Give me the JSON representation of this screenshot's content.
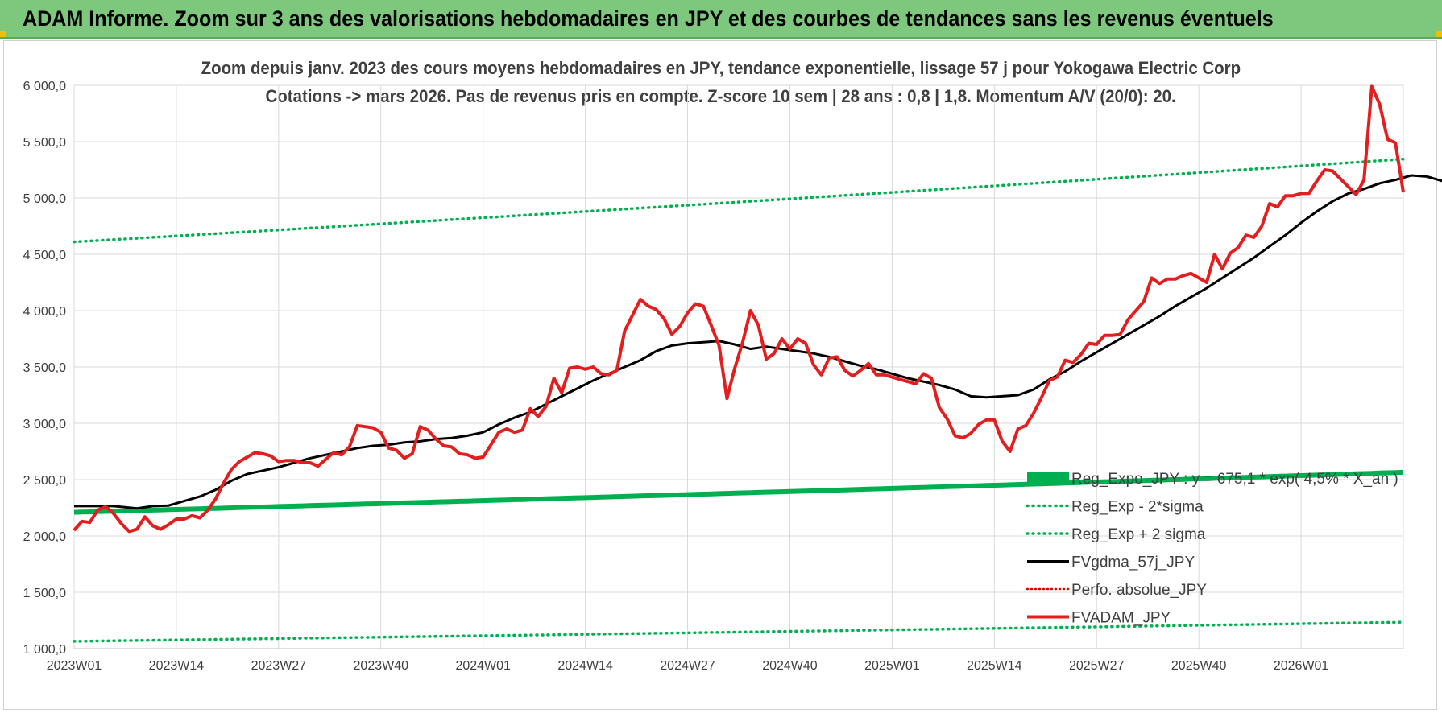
{
  "banner": {
    "title": "ADAM Informe. Zoom sur 3 ans des valorisations hebdomadaires en JPY et des courbes de tendances sans les revenus éventuels",
    "color": "#7dc87d"
  },
  "chart_data": {
    "type": "line",
    "title_line1": "Zoom depuis janv. 2023 des cours moyens hebdomadaires en JPY, tendance exponentielle, lissage 57 j pour Yokogawa Electric Corp",
    "title_line2": "Cotations -> mars 2026. Pas de revenus pris en compte. Z-score 10 sem | 28 ans : 0,8 | 1,8. Momentum A/V (20/0): 20.",
    "ylim": [
      1000,
      6000
    ],
    "y_ticks": [
      "1 000,0",
      "1 500,0",
      "2 000,0",
      "2 500,0",
      "3 000,0",
      "3 500,0",
      "4 000,0",
      "4 500,0",
      "5 000,0",
      "5 500,0",
      "6 000,0"
    ],
    "y_tick_values": [
      1000,
      1500,
      2000,
      2500,
      3000,
      3500,
      4000,
      4500,
      5000,
      5500,
      6000
    ],
    "x_ticks": [
      "2023W01",
      "2023W14",
      "2023W27",
      "2023W40",
      "2024W01",
      "2024W14",
      "2024W27",
      "2024W40",
      "2025W01",
      "2025W14",
      "2025W27",
      "2025W40",
      "2026W01"
    ],
    "x_tick_index": [
      0,
      13,
      26,
      39,
      52,
      65,
      78,
      91,
      104,
      117,
      130,
      143,
      156
    ],
    "n_weeks": 167,
    "gridlines": true,
    "legend_position": "bottom-right",
    "series": [
      {
        "name": "Reg_Expo_JPY : y = 675,1 * exp( 4,5% * X_an )",
        "style": "thick",
        "color": "#00b050",
        "start": 2210,
        "end": 2565
      },
      {
        "name": "Reg_Exp - 2*sigma",
        "style": "dotted",
        "color": "#00b050",
        "start": 1065,
        "end": 1235
      },
      {
        "name": "Reg_Exp + 2 sigma",
        "style": "dotted",
        "color": "#00b050",
        "start": 4610,
        "end": 5345
      },
      {
        "name": "FVgdma_57j_JPY",
        "style": "solid",
        "color": "#000000",
        "points": [
          [
            0,
            2265
          ],
          [
            5,
            2265
          ],
          [
            8,
            2245
          ],
          [
            10,
            2265
          ],
          [
            12,
            2270
          ],
          [
            14,
            2310
          ],
          [
            16,
            2350
          ],
          [
            18,
            2410
          ],
          [
            20,
            2490
          ],
          [
            22,
            2550
          ],
          [
            24,
            2580
          ],
          [
            26,
            2610
          ],
          [
            28,
            2650
          ],
          [
            30,
            2690
          ],
          [
            32,
            2720
          ],
          [
            34,
            2750
          ],
          [
            36,
            2780
          ],
          [
            38,
            2800
          ],
          [
            40,
            2810
          ],
          [
            42,
            2830
          ],
          [
            44,
            2840
          ],
          [
            46,
            2860
          ],
          [
            48,
            2870
          ],
          [
            50,
            2890
          ],
          [
            52,
            2920
          ],
          [
            54,
            2990
          ],
          [
            56,
            3050
          ],
          [
            58,
            3100
          ],
          [
            60,
            3170
          ],
          [
            62,
            3240
          ],
          [
            64,
            3310
          ],
          [
            66,
            3380
          ],
          [
            68,
            3440
          ],
          [
            70,
            3500
          ],
          [
            72,
            3560
          ],
          [
            74,
            3640
          ],
          [
            76,
            3690
          ],
          [
            78,
            3710
          ],
          [
            80,
            3720
          ],
          [
            82,
            3730
          ],
          [
            84,
            3700
          ],
          [
            86,
            3660
          ],
          [
            88,
            3680
          ],
          [
            90,
            3660
          ],
          [
            92,
            3640
          ],
          [
            94,
            3620
          ],
          [
            96,
            3590
          ],
          [
            98,
            3550
          ],
          [
            100,
            3510
          ],
          [
            102,
            3480
          ],
          [
            104,
            3440
          ],
          [
            106,
            3400
          ],
          [
            108,
            3370
          ],
          [
            110,
            3340
          ],
          [
            112,
            3300
          ],
          [
            114,
            3240
          ],
          [
            116,
            3230
          ],
          [
            118,
            3240
          ],
          [
            120,
            3250
          ],
          [
            122,
            3300
          ],
          [
            124,
            3390
          ],
          [
            126,
            3460
          ],
          [
            128,
            3550
          ],
          [
            130,
            3630
          ],
          [
            132,
            3710
          ],
          [
            134,
            3790
          ],
          [
            136,
            3870
          ],
          [
            138,
            3950
          ],
          [
            140,
            4040
          ],
          [
            142,
            4120
          ],
          [
            144,
            4200
          ],
          [
            146,
            4290
          ],
          [
            148,
            4380
          ],
          [
            150,
            4470
          ],
          [
            152,
            4570
          ],
          [
            154,
            4670
          ],
          [
            156,
            4780
          ],
          [
            158,
            4880
          ],
          [
            160,
            4970
          ],
          [
            162,
            5040
          ],
          [
            164,
            5080
          ],
          [
            166,
            5130
          ],
          [
            168,
            5160
          ],
          [
            170,
            5200
          ],
          [
            172,
            5190
          ],
          [
            174,
            5150
          ]
        ]
      },
      {
        "name": "Perfo. absolue_JPY",
        "style": "dotted",
        "color": "#e00000",
        "points": []
      },
      {
        "name": "FVADAM_JPY",
        "style": "thick",
        "color": "#e41e1e",
        "points": [
          [
            0,
            2050
          ],
          [
            1,
            2130
          ],
          [
            2,
            2120
          ],
          [
            3,
            2230
          ],
          [
            4,
            2260
          ],
          [
            5,
            2200
          ],
          [
            6,
            2110
          ],
          [
            7,
            2040
          ],
          [
            8,
            2060
          ],
          [
            9,
            2170
          ],
          [
            10,
            2090
          ],
          [
            11,
            2060
          ],
          [
            12,
            2100
          ],
          [
            13,
            2150
          ],
          [
            14,
            2150
          ],
          [
            15,
            2180
          ],
          [
            16,
            2160
          ],
          [
            17,
            2230
          ],
          [
            18,
            2330
          ],
          [
            19,
            2470
          ],
          [
            20,
            2590
          ],
          [
            21,
            2660
          ],
          [
            22,
            2700
          ],
          [
            23,
            2740
          ],
          [
            24,
            2730
          ],
          [
            25,
            2710
          ],
          [
            26,
            2660
          ],
          [
            27,
            2670
          ],
          [
            28,
            2670
          ],
          [
            29,
            2650
          ],
          [
            30,
            2650
          ],
          [
            31,
            2620
          ],
          [
            32,
            2680
          ],
          [
            33,
            2740
          ],
          [
            34,
            2720
          ],
          [
            35,
            2790
          ],
          [
            36,
            2980
          ],
          [
            37,
            2970
          ],
          [
            38,
            2960
          ],
          [
            39,
            2920
          ],
          [
            40,
            2780
          ],
          [
            41,
            2760
          ],
          [
            42,
            2690
          ],
          [
            43,
            2730
          ],
          [
            44,
            2970
          ],
          [
            45,
            2940
          ],
          [
            46,
            2860
          ],
          [
            47,
            2800
          ],
          [
            48,
            2790
          ],
          [
            49,
            2730
          ],
          [
            50,
            2720
          ],
          [
            51,
            2690
          ],
          [
            52,
            2700
          ],
          [
            53,
            2810
          ],
          [
            54,
            2920
          ],
          [
            55,
            2950
          ],
          [
            56,
            2920
          ],
          [
            57,
            2940
          ],
          [
            58,
            3130
          ],
          [
            59,
            3060
          ],
          [
            60,
            3150
          ],
          [
            61,
            3400
          ],
          [
            62,
            3270
          ],
          [
            63,
            3490
          ],
          [
            64,
            3500
          ],
          [
            65,
            3480
          ],
          [
            66,
            3500
          ],
          [
            67,
            3440
          ],
          [
            68,
            3430
          ],
          [
            69,
            3470
          ],
          [
            70,
            3820
          ],
          [
            71,
            3960
          ],
          [
            72,
            4100
          ],
          [
            73,
            4040
          ],
          [
            74,
            4010
          ],
          [
            75,
            3930
          ],
          [
            76,
            3790
          ],
          [
            77,
            3860
          ],
          [
            78,
            3980
          ],
          [
            79,
            4060
          ],
          [
            80,
            4040
          ],
          [
            81,
            3870
          ],
          [
            82,
            3690
          ],
          [
            83,
            3220
          ],
          [
            84,
            3490
          ],
          [
            85,
            3720
          ],
          [
            86,
            4000
          ],
          [
            87,
            3870
          ],
          [
            88,
            3570
          ],
          [
            89,
            3620
          ],
          [
            90,
            3750
          ],
          [
            91,
            3660
          ],
          [
            92,
            3750
          ],
          [
            93,
            3710
          ],
          [
            94,
            3520
          ],
          [
            95,
            3430
          ],
          [
            96,
            3580
          ],
          [
            97,
            3590
          ],
          [
            98,
            3470
          ],
          [
            99,
            3420
          ],
          [
            100,
            3470
          ],
          [
            101,
            3530
          ],
          [
            102,
            3430
          ],
          [
            103,
            3430
          ],
          [
            104,
            3410
          ],
          [
            105,
            3390
          ],
          [
            106,
            3370
          ],
          [
            107,
            3350
          ],
          [
            108,
            3440
          ],
          [
            109,
            3400
          ],
          [
            110,
            3140
          ],
          [
            111,
            3040
          ],
          [
            112,
            2890
          ],
          [
            113,
            2870
          ],
          [
            114,
            2910
          ],
          [
            115,
            2990
          ],
          [
            116,
            3030
          ],
          [
            117,
            3030
          ],
          [
            118,
            2840
          ],
          [
            119,
            2750
          ],
          [
            120,
            2950
          ],
          [
            121,
            2980
          ],
          [
            122,
            3090
          ],
          [
            123,
            3230
          ],
          [
            124,
            3380
          ],
          [
            125,
            3410
          ],
          [
            126,
            3560
          ],
          [
            127,
            3540
          ],
          [
            128,
            3610
          ],
          [
            129,
            3710
          ],
          [
            130,
            3700
          ],
          [
            131,
            3780
          ],
          [
            132,
            3780
          ],
          [
            133,
            3790
          ],
          [
            134,
            3920
          ],
          [
            135,
            4000
          ],
          [
            136,
            4080
          ],
          [
            137,
            4290
          ],
          [
            138,
            4240
          ],
          [
            139,
            4280
          ],
          [
            140,
            4280
          ],
          [
            141,
            4310
          ],
          [
            142,
            4330
          ],
          [
            143,
            4290
          ],
          [
            144,
            4250
          ],
          [
            145,
            4500
          ],
          [
            146,
            4370
          ],
          [
            147,
            4510
          ],
          [
            148,
            4560
          ],
          [
            149,
            4670
          ],
          [
            150,
            4650
          ],
          [
            151,
            4750
          ],
          [
            152,
            4950
          ],
          [
            153,
            4920
          ],
          [
            154,
            5020
          ],
          [
            155,
            5020
          ],
          [
            156,
            5040
          ],
          [
            157,
            5040
          ],
          [
            158,
            5150
          ],
          [
            159,
            5250
          ],
          [
            160,
            5240
          ],
          [
            161,
            5170
          ],
          [
            162,
            5100
          ],
          [
            163,
            5030
          ],
          [
            164,
            5160
          ],
          [
            165,
            5990
          ],
          [
            166,
            5830
          ],
          [
            167,
            5520
          ],
          [
            168,
            5490
          ],
          [
            169,
            5050
          ]
        ]
      }
    ]
  }
}
